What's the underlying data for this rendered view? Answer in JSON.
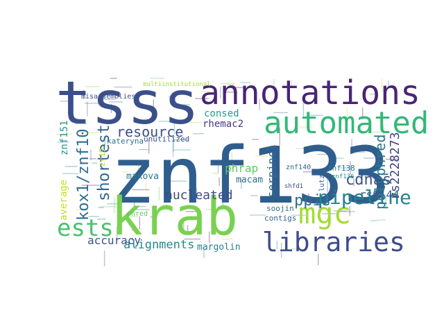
{
  "cloud": {
    "words": [
      {
        "text": "znf133",
        "color": "#2f5e8e"
      },
      {
        "text": "tsss",
        "color": "#3b4f8a"
      },
      {
        "text": "krab",
        "color": "#7ad151"
      },
      {
        "text": "annotations",
        "color": "#482576"
      },
      {
        "text": "automated",
        "color": "#35b779"
      },
      {
        "text": "libraries",
        "color": "#3e4c8a"
      },
      {
        "text": "ests",
        "color": "#4ac16d"
      },
      {
        "text": "mgc",
        "color": "#a5db36"
      },
      {
        "text": "pipeline",
        "color": "#26828e"
      },
      {
        "text": "resource",
        "color": "#3d4e8a"
      },
      {
        "text": "kox1/znf10",
        "color": "#2e6d8e"
      },
      {
        "text": "shortest",
        "color": "#31688e"
      },
      {
        "text": "cdnas",
        "color": "#3b528b"
      },
      {
        "text": "ppis",
        "color": "#2d708e"
      },
      {
        "text": "polyphred",
        "color": "#2a788e"
      },
      {
        "text": "rs2228273",
        "color": "#414487"
      },
      {
        "text": "serpinc1",
        "color": "#2f6b8e"
      },
      {
        "text": "rs9144",
        "color": "#32648e"
      },
      {
        "text": "alignments",
        "color": "#23898e"
      },
      {
        "text": "accuracy",
        "color": "#3b528b"
      },
      {
        "text": "nucleated",
        "color": "#3e4a89"
      },
      {
        "text": "phrap",
        "color": "#5ec962"
      },
      {
        "text": "macam",
        "color": "#2c728e"
      },
      {
        "text": "consed",
        "color": "#1f9f88"
      },
      {
        "text": "rhemac2",
        "color": "#443a83"
      },
      {
        "text": "makova",
        "color": "#2a788e"
      },
      {
        "text": "average",
        "color": "#c2df23"
      },
      {
        "text": "znf151",
        "color": "#1f988b"
      },
      {
        "text": "margolin",
        "color": "#27808e"
      },
      {
        "text": "contigs",
        "color": "#33638d"
      },
      {
        "text": "soojin",
        "color": "#2d708e"
      },
      {
        "text": "misassemblies",
        "color": "#3e4c8a"
      },
      {
        "text": "unutilized",
        "color": "#3b528b"
      },
      {
        "text": "kateryna",
        "color": "#2c728e"
      },
      {
        "text": "znf140",
        "color": "#31688e"
      },
      {
        "text": "znf138",
        "color": "#2a788e"
      },
      {
        "text": "znf136",
        "color": "#21918c"
      },
      {
        "text": "shfd1",
        "color": "#3e4a89"
      },
      {
        "text": "lutz",
        "color": "#35608d"
      },
      {
        "text": "multiinstitutional",
        "color": "#9fda3a"
      },
      {
        "text": "phred",
        "color": "#5ec962"
      },
      {
        "text": "zr19",
        "color": "#b8de29"
      }
    ]
  }
}
